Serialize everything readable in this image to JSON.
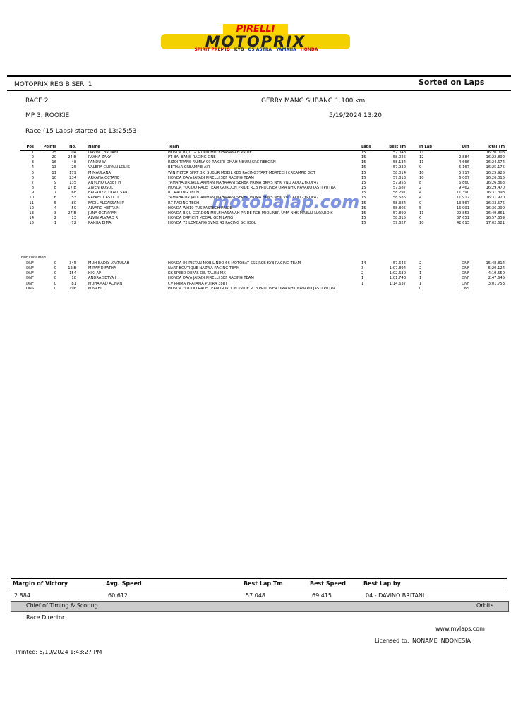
{
  "logo": {
    "brand": "PIRELLI",
    "title": "MOTOPRIX",
    "sponsors": [
      "SPIRIT PREMIO",
      "KYB",
      "GS ASTRA",
      "YAMAHA",
      "HONDA"
    ]
  },
  "header": {
    "event": "MOTOPRIX REG B SERI 1",
    "sort": "Sorted on Laps",
    "race": "RACE 2",
    "track": "GERRY MANG SUBANG 1.100 km",
    "class": "MP 3. ROOKIE",
    "date": "5/19/2024 13:20",
    "start": "Race (15 Laps) started at 13:25:53"
  },
  "watermark": "motobalap.com",
  "table": {
    "columns": [
      "Pos",
      "Points",
      "No.",
      "Name",
      "Team",
      "Laps",
      "Best Tm",
      "In Lap",
      "Diff",
      "Total Tm"
    ],
    "rows": [
      [
        "1",
        "25",
        "04",
        "DAVINO BRITANI",
        "HONDA BKJU GORDON MULFIHASANAH PRIDE",
        "15",
        "57.048",
        "11",
        null,
        "16:20.008"
      ],
      [
        "2",
        "20",
        "24 B",
        "RAYHA ZAKY",
        "PT BAI BAMS RACING ONE",
        "15",
        "58.025",
        "12",
        "2.884",
        "16:22.892"
      ],
      [
        "3",
        "16",
        "48",
        "PANDU W",
        "RIZQI TRANS FAMILY 99 RAKERI OMAH MBURI SRC REBORN",
        "15",
        "58.134",
        "11",
        "4.666",
        "16:24.674"
      ],
      [
        "4",
        "13",
        "25",
        "VALERA CLEVAN LOUIS",
        "BETHAR CREAMPIE AIR",
        "15",
        "57.930",
        "9",
        "5.167",
        "16:25.175"
      ],
      [
        "5",
        "11",
        "179",
        "M MAULANA",
        "WIN FILTER SPRT BKJ SUBUR MOBIL KDS RACINGSTART MBRTECH CREAMPIE GDT",
        "15",
        "58.014",
        "10",
        "5.917",
        "16:25.925"
      ],
      [
        "6",
        "10",
        "234",
        "ARKANA OCTANE",
        "HONDA DAYA JAYADI PIRELLI SKF RACING TEAM",
        "15",
        "57.813",
        "10",
        "6.007",
        "16:26.015"
      ],
      [
        "7",
        "9",
        "135",
        "ANYCHO CASEY H",
        "YAMAHA DR.JACK AMMAN MAHARANI SERBA PRIMA BKMS NHK VND ADD ZYROF47",
        "15",
        "57.956",
        "8",
        "6.860",
        "16:26.868"
      ],
      [
        "8",
        "8",
        "17 B",
        "ZIVEN ROSUL",
        "HONDA YUKIDO RACE TEAM GORDON PRIDE RCB PROLINER UMA NHK NAVARO JASTI PUTRA",
        "15",
        "57.687",
        "2",
        "9.462",
        "16:29.470"
      ],
      [
        "9",
        "7",
        "68",
        "BAGANZZO KAUTSAR",
        "R7 RACING TECH",
        "15",
        "58.291",
        "4",
        "11.390",
        "16:31.398"
      ],
      [
        "10",
        "6",
        "53",
        "RAFAEL CASTILO",
        "YAMAHA DR.JACK AMMAN MAHARANI SERBA PRIMA BKMS NHK VND ADD ZYROF47",
        "15",
        "58.586",
        "4",
        "11.912",
        "16:31.920"
      ],
      [
        "11",
        "5",
        "80",
        "FADIL ALGASSANI P",
        "R7 RACING TECH",
        "15",
        "58.384",
        "9",
        "13.567",
        "16:33.575"
      ],
      [
        "12",
        "4",
        "59",
        "ALVARO HETTA M",
        "HONDA WH19 TUS FASTECH PRIDE",
        "15",
        "58.805",
        "5",
        "16.991",
        "16:36.999"
      ],
      [
        "13",
        "3",
        "27 B",
        "JUNA OCTAVIAN",
        "HONDA BKJU GORDON MULFIHASANAH PRIDE RCB PROLINER UMA NHK PIRELLI NAVARO K",
        "15",
        "57.899",
        "11",
        "29.853",
        "16:49.861"
      ],
      [
        "14",
        "2",
        "13",
        "ALVIN ALVARO R",
        "HONDA DRP KYT MEDAL GEMILANG",
        "15",
        "58.815",
        "6",
        "37.651",
        "16:57.659"
      ],
      [
        "15",
        "1",
        "72",
        "RAKHA BIMA",
        "HONDA 72 LEMBANG SVMX 43 RACING SCHOOL",
        "15",
        "59.627",
        "10",
        "42.613",
        "17:02.621"
      ]
    ],
    "not_classified_label": "Not classified",
    "not_classified": [
      [
        "DNF",
        "0",
        "345",
        "MUH BADLY AYATULAH",
        "HONDA 86 RISTAN MOBILINDO 66 MOTOBAT SSS RCB KYB RACING TEAM",
        "14",
        "57.646",
        "2",
        "DNF",
        "15:48.814"
      ],
      [
        "DNF",
        "0",
        "12 B",
        "M RAFID FATHA",
        "NART BOUTIQUE NAZWA RACING TEAM",
        "3",
        "1:07.894",
        "2",
        "DNF",
        "5:20.124"
      ],
      [
        "DNF",
        "0",
        "154",
        "KIKI AP",
        "KK SPEED DEFAS OIL TALUN MX",
        "2",
        "1:02.630",
        "1",
        "DNF",
        "4:19.550"
      ],
      [
        "DNF",
        "0",
        "18",
        "ANDRA SETYA I",
        "HONDA DAYA JAYADI PIRELLI SKF RACING TEAM",
        "1",
        "1:01.743",
        "1",
        "DNF",
        "2:47.645"
      ],
      [
        "DNF",
        "0",
        "81",
        "MUHAMAD ADNAN",
        "CV PRIMA PRATAMA PUTRA 38RT",
        "1",
        "1:14.637",
        "1",
        "DNF",
        "3:01.753"
      ],
      [
        "DNS",
        "0",
        "196",
        "M NABIL",
        "HONDA YUKIDO RACE TEAM GORDON PRIDE RCB PROLINER UMA NHK NAVARO JASTI PUTRA",
        null,
        null,
        "0",
        "DNS",
        null
      ]
    ]
  },
  "summary": {
    "labels": [
      "Margin of Victory",
      "Avg. Speed",
      "Best Lap Tm",
      "Best Speed",
      "Best Lap by"
    ],
    "values": [
      "2.884",
      "60.612",
      "57.048",
      "69.415",
      "04 - DAVINO BRITANI"
    ]
  },
  "footer": {
    "chief": "Chief of Timing & Scoring",
    "orbits": "Orbits",
    "director": "Race Director",
    "site": "www.mylaps.com",
    "licensed_label": "Licensed to:",
    "licensee": "NONAME INDONESIA",
    "printed": "Printed: 5/19/2024 1:43:27 PM"
  }
}
